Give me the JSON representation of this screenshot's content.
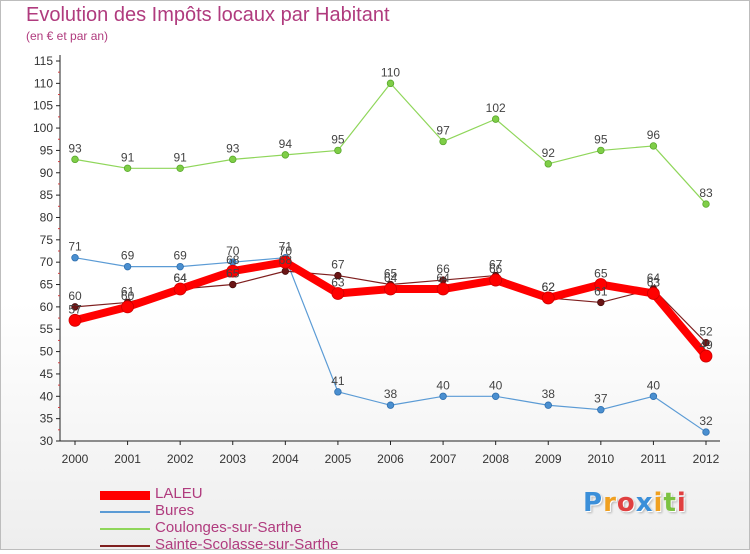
{
  "header": {
    "title": "Evolution des Impôts locaux par Habitant",
    "subtitle": "(en € et par an)"
  },
  "logo": {
    "letters": [
      "P",
      "r",
      "o",
      "x",
      "i",
      "t",
      "i"
    ]
  },
  "chart_data": {
    "type": "line",
    "title": "Evolution des Impôts locaux par Habitant",
    "subtitle": "(en € et par an)",
    "x": [
      "2000",
      "2001",
      "2002",
      "2003",
      "2004",
      "2005",
      "2006",
      "2007",
      "2008",
      "2009",
      "2010",
      "2011",
      "2012"
    ],
    "yticks": [
      30,
      35,
      40,
      45,
      50,
      55,
      60,
      65,
      70,
      75,
      80,
      85,
      90,
      95,
      100,
      105,
      110,
      115
    ],
    "ylim": [
      30,
      115
    ],
    "grid": false,
    "legend_position": "bottom-left",
    "series": [
      {
        "name": "LALEU",
        "color": "#ff0000",
        "values": [
          57,
          60,
          64,
          68,
          70,
          63,
          64,
          64,
          66,
          62,
          65,
          63,
          49
        ]
      },
      {
        "name": "Bures",
        "color": "#5b9bd5",
        "values": [
          71,
          69,
          69,
          70,
          71,
          41,
          38,
          40,
          40,
          38,
          37,
          40,
          32
        ]
      },
      {
        "name": "Coulonges-sur-Sarthe",
        "color": "#8fd65a",
        "values": [
          93,
          91,
          91,
          93,
          94,
          95,
          110,
          97,
          102,
          92,
          95,
          96,
          83
        ]
      },
      {
        "name": "Sainte-Scolasse-sur-Sarthe",
        "color": "#7f1f1f",
        "values": [
          60,
          61,
          64,
          65,
          68,
          67,
          65,
          66,
          67,
          62,
          61,
          64,
          52
        ]
      }
    ]
  }
}
